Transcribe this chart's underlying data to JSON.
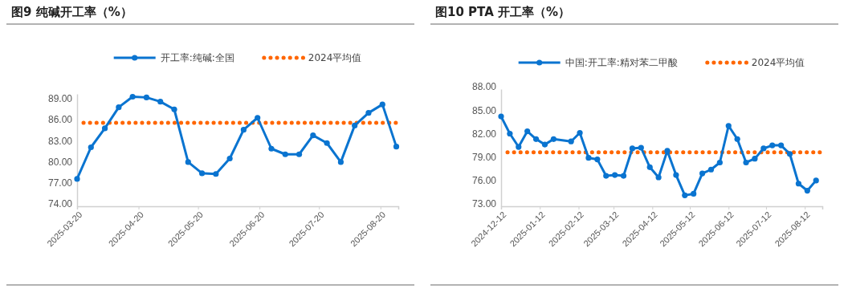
{
  "chart_data": [
    {
      "type": "line",
      "title": "图9  纯碱开工率（%）",
      "x": [
        "2025-03-20",
        "2025-03-27",
        "2025-04-03",
        "2025-04-10",
        "2025-04-17",
        "2025-04-24",
        "2025-05-01",
        "2025-05-08",
        "2025-05-15",
        "2025-05-22",
        "2025-05-29",
        "2025-06-05",
        "2025-06-12",
        "2025-06-19",
        "2025-06-26",
        "2025-07-03",
        "2025-07-10",
        "2025-07-17",
        "2025-07-24",
        "2025-07-31",
        "2025-08-07",
        "2025-08-14",
        "2025-08-21",
        "2025-08-28"
      ],
      "series": [
        {
          "name": "开工率:纯碱:全国",
          "color": "#0a74d0",
          "values": [
            77.9,
            82.4,
            85.1,
            88.1,
            89.6,
            89.5,
            88.9,
            87.8,
            80.3,
            78.7,
            78.6,
            80.8,
            84.9,
            86.6,
            82.2,
            81.4,
            81.4,
            84.1,
            83.0,
            80.3,
            85.5,
            87.3,
            88.5,
            82.5
          ]
        }
      ],
      "ref_lines": [
        {
          "axis": "y",
          "value": 85.9,
          "label": "2024平均值",
          "color": "#ff6600",
          "line_style": "dotted"
        }
      ],
      "xlim": [
        "2025-03-20",
        "2025-08-29"
      ],
      "xticks": [
        "2025-03-20",
        "2025-04-20",
        "2025-05-20",
        "2025-06-20",
        "2025-07-20",
        "2025-08-20"
      ],
      "ylim": [
        74,
        90
      ],
      "yticks": [
        {
          "value": 74,
          "label": "74.00"
        },
        {
          "value": 77,
          "label": "77.00"
        },
        {
          "value": 80,
          "label": "80.00"
        },
        {
          "value": 83,
          "label": "83.00"
        },
        {
          "value": 86,
          "label": "86.00"
        },
        {
          "value": 89,
          "label": "89.00"
        }
      ],
      "grid": false,
      "legend": "top",
      "marker": "circle",
      "line_style": "solid"
    },
    {
      "type": "line",
      "title": "图10 PTA 开工率（%）",
      "x": [
        "2024-12-12",
        "2024-12-19",
        "2024-12-26",
        "2025-01-02",
        "2025-01-09",
        "2025-01-16",
        "2025-01-23",
        "2025-02-06",
        "2025-02-13",
        "2025-02-20",
        "2025-02-27",
        "2025-03-06",
        "2025-03-13",
        "2025-03-20",
        "2025-03-27",
        "2025-04-03",
        "2025-04-10",
        "2025-04-17",
        "2025-04-24",
        "2025-05-01",
        "2025-05-08",
        "2025-05-15",
        "2025-05-22",
        "2025-05-29",
        "2025-06-05",
        "2025-06-12",
        "2025-06-19",
        "2025-06-26",
        "2025-07-03",
        "2025-07-10",
        "2025-07-17",
        "2025-07-24",
        "2025-07-31",
        "2025-08-07",
        "2025-08-14",
        "2025-08-21"
      ],
      "series": [
        {
          "name": "中国:开工率:精对苯二甲酸",
          "color": "#0a74d0",
          "values": [
            84.5,
            82.3,
            80.6,
            82.6,
            81.6,
            80.9,
            81.6,
            81.3,
            82.4,
            79.2,
            79.0,
            76.9,
            77.0,
            76.9,
            80.4,
            80.5,
            78.0,
            76.7,
            80.1,
            77.0,
            74.4,
            74.6,
            77.2,
            77.7,
            78.6,
            83.3,
            81.6,
            78.6,
            79.1,
            80.4,
            80.8,
            80.8,
            79.7,
            75.9,
            75.0,
            76.3
          ]
        }
      ],
      "ref_lines": [
        {
          "axis": "y",
          "value": 79.9,
          "label": "2024平均值",
          "color": "#ff6600",
          "line_style": "dotted"
        }
      ],
      "xlim": [
        "2024-12-12",
        "2025-08-26"
      ],
      "xticks": [
        "2024-12-12",
        "2025-01-12",
        "2025-02-12",
        "2025-03-12",
        "2025-04-12",
        "2025-05-12",
        "2025-06-12",
        "2025-07-12",
        "2025-08-12"
      ],
      "ylim": [
        73,
        88
      ],
      "yticks": [
        {
          "value": 73,
          "label": "73.00"
        },
        {
          "value": 76,
          "label": "76.00"
        },
        {
          "value": 79,
          "label": "79.00"
        },
        {
          "value": 82,
          "label": "82.00"
        },
        {
          "value": 85,
          "label": "85.00"
        },
        {
          "value": 88,
          "label": "88.00"
        }
      ],
      "grid": false,
      "legend": "top",
      "marker": "circle",
      "line_style": "solid"
    }
  ]
}
